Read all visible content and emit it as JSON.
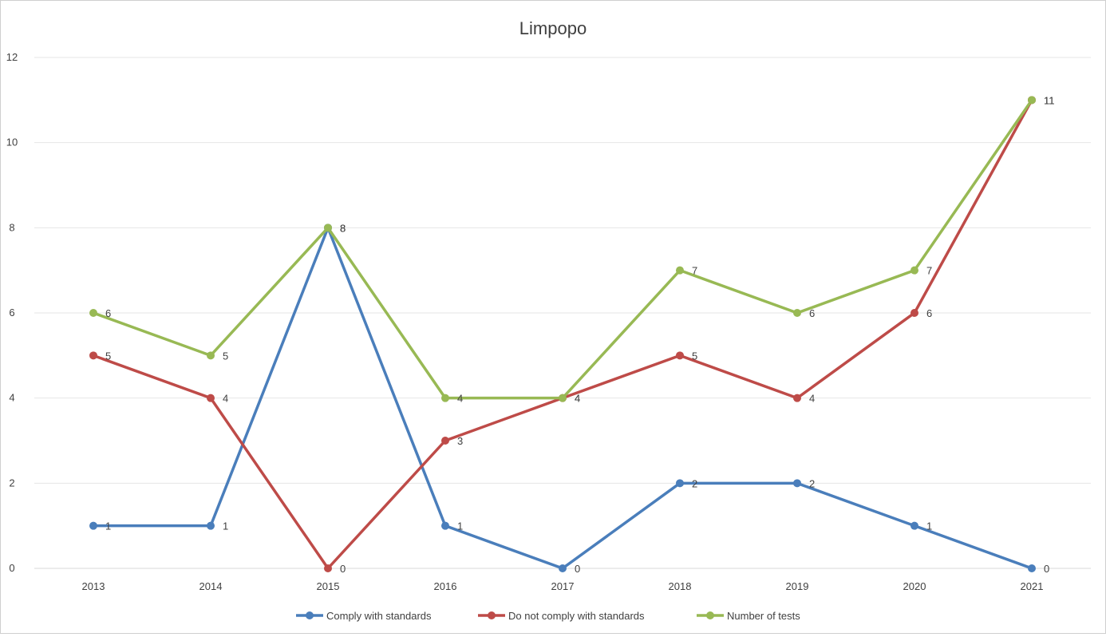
{
  "chart_data": {
    "type": "line",
    "title": "Limpopo",
    "categories": [
      "2013",
      "2014",
      "2015",
      "2016",
      "2017",
      "2018",
      "2019",
      "2020",
      "2021"
    ],
    "ylim": [
      0,
      12
    ],
    "yticks": [
      0,
      2,
      4,
      6,
      8,
      10,
      12
    ],
    "grid": true,
    "legend_position": "bottom",
    "series": [
      {
        "name": "Comply with standards",
        "color": "#4A7EBB",
        "values": [
          1,
          1,
          8,
          1,
          0,
          2,
          2,
          1,
          0
        ]
      },
      {
        "name": "Do not comply with standards",
        "color": "#BE4B48",
        "values": [
          5,
          4,
          0,
          3,
          4,
          5,
          4,
          6,
          11
        ]
      },
      {
        "name": "Number of tests",
        "color": "#98B954",
        "values": [
          6,
          5,
          8,
          4,
          4,
          7,
          6,
          7,
          11
        ]
      }
    ]
  }
}
